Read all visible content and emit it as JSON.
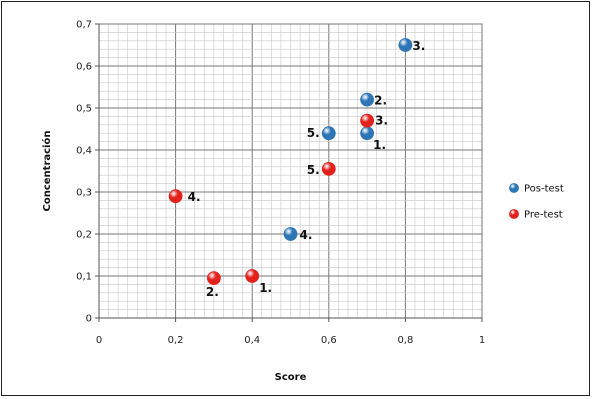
{
  "chart_data": {
    "type": "scatter",
    "title": "",
    "xlabel": "Score",
    "ylabel": "Concentración",
    "xlim": [
      0,
      1
    ],
    "ylim": [
      0,
      0.7
    ],
    "x_ticks": [
      "0",
      "0,2",
      "0,4",
      "0,6",
      "0,8",
      "1"
    ],
    "y_ticks": [
      "0",
      "0,1",
      "0,2",
      "0,3",
      "0,4",
      "0,5",
      "0,6",
      "0,7"
    ],
    "grid": true,
    "legend_position": "right",
    "series": [
      {
        "name": "Pos-test",
        "color": "#2e75b6",
        "points": [
          {
            "x": 0.7,
            "y": 0.44,
            "label": "1."
          },
          {
            "x": 0.7,
            "y": 0.52,
            "label": "2."
          },
          {
            "x": 0.8,
            "y": 0.65,
            "label": "3."
          },
          {
            "x": 0.5,
            "y": 0.2,
            "label": "4."
          },
          {
            "x": 0.6,
            "y": 0.44,
            "label": "5."
          }
        ]
      },
      {
        "name": "Pre-test",
        "color": "#e3211c",
        "points": [
          {
            "x": 0.4,
            "y": 0.1,
            "label": "1."
          },
          {
            "x": 0.3,
            "y": 0.095,
            "label": "2."
          },
          {
            "x": 0.7,
            "y": 0.47,
            "label": "3."
          },
          {
            "x": 0.2,
            "y": 0.29,
            "label": "4."
          },
          {
            "x": 0.6,
            "y": 0.355,
            "label": "5."
          }
        ]
      }
    ]
  }
}
